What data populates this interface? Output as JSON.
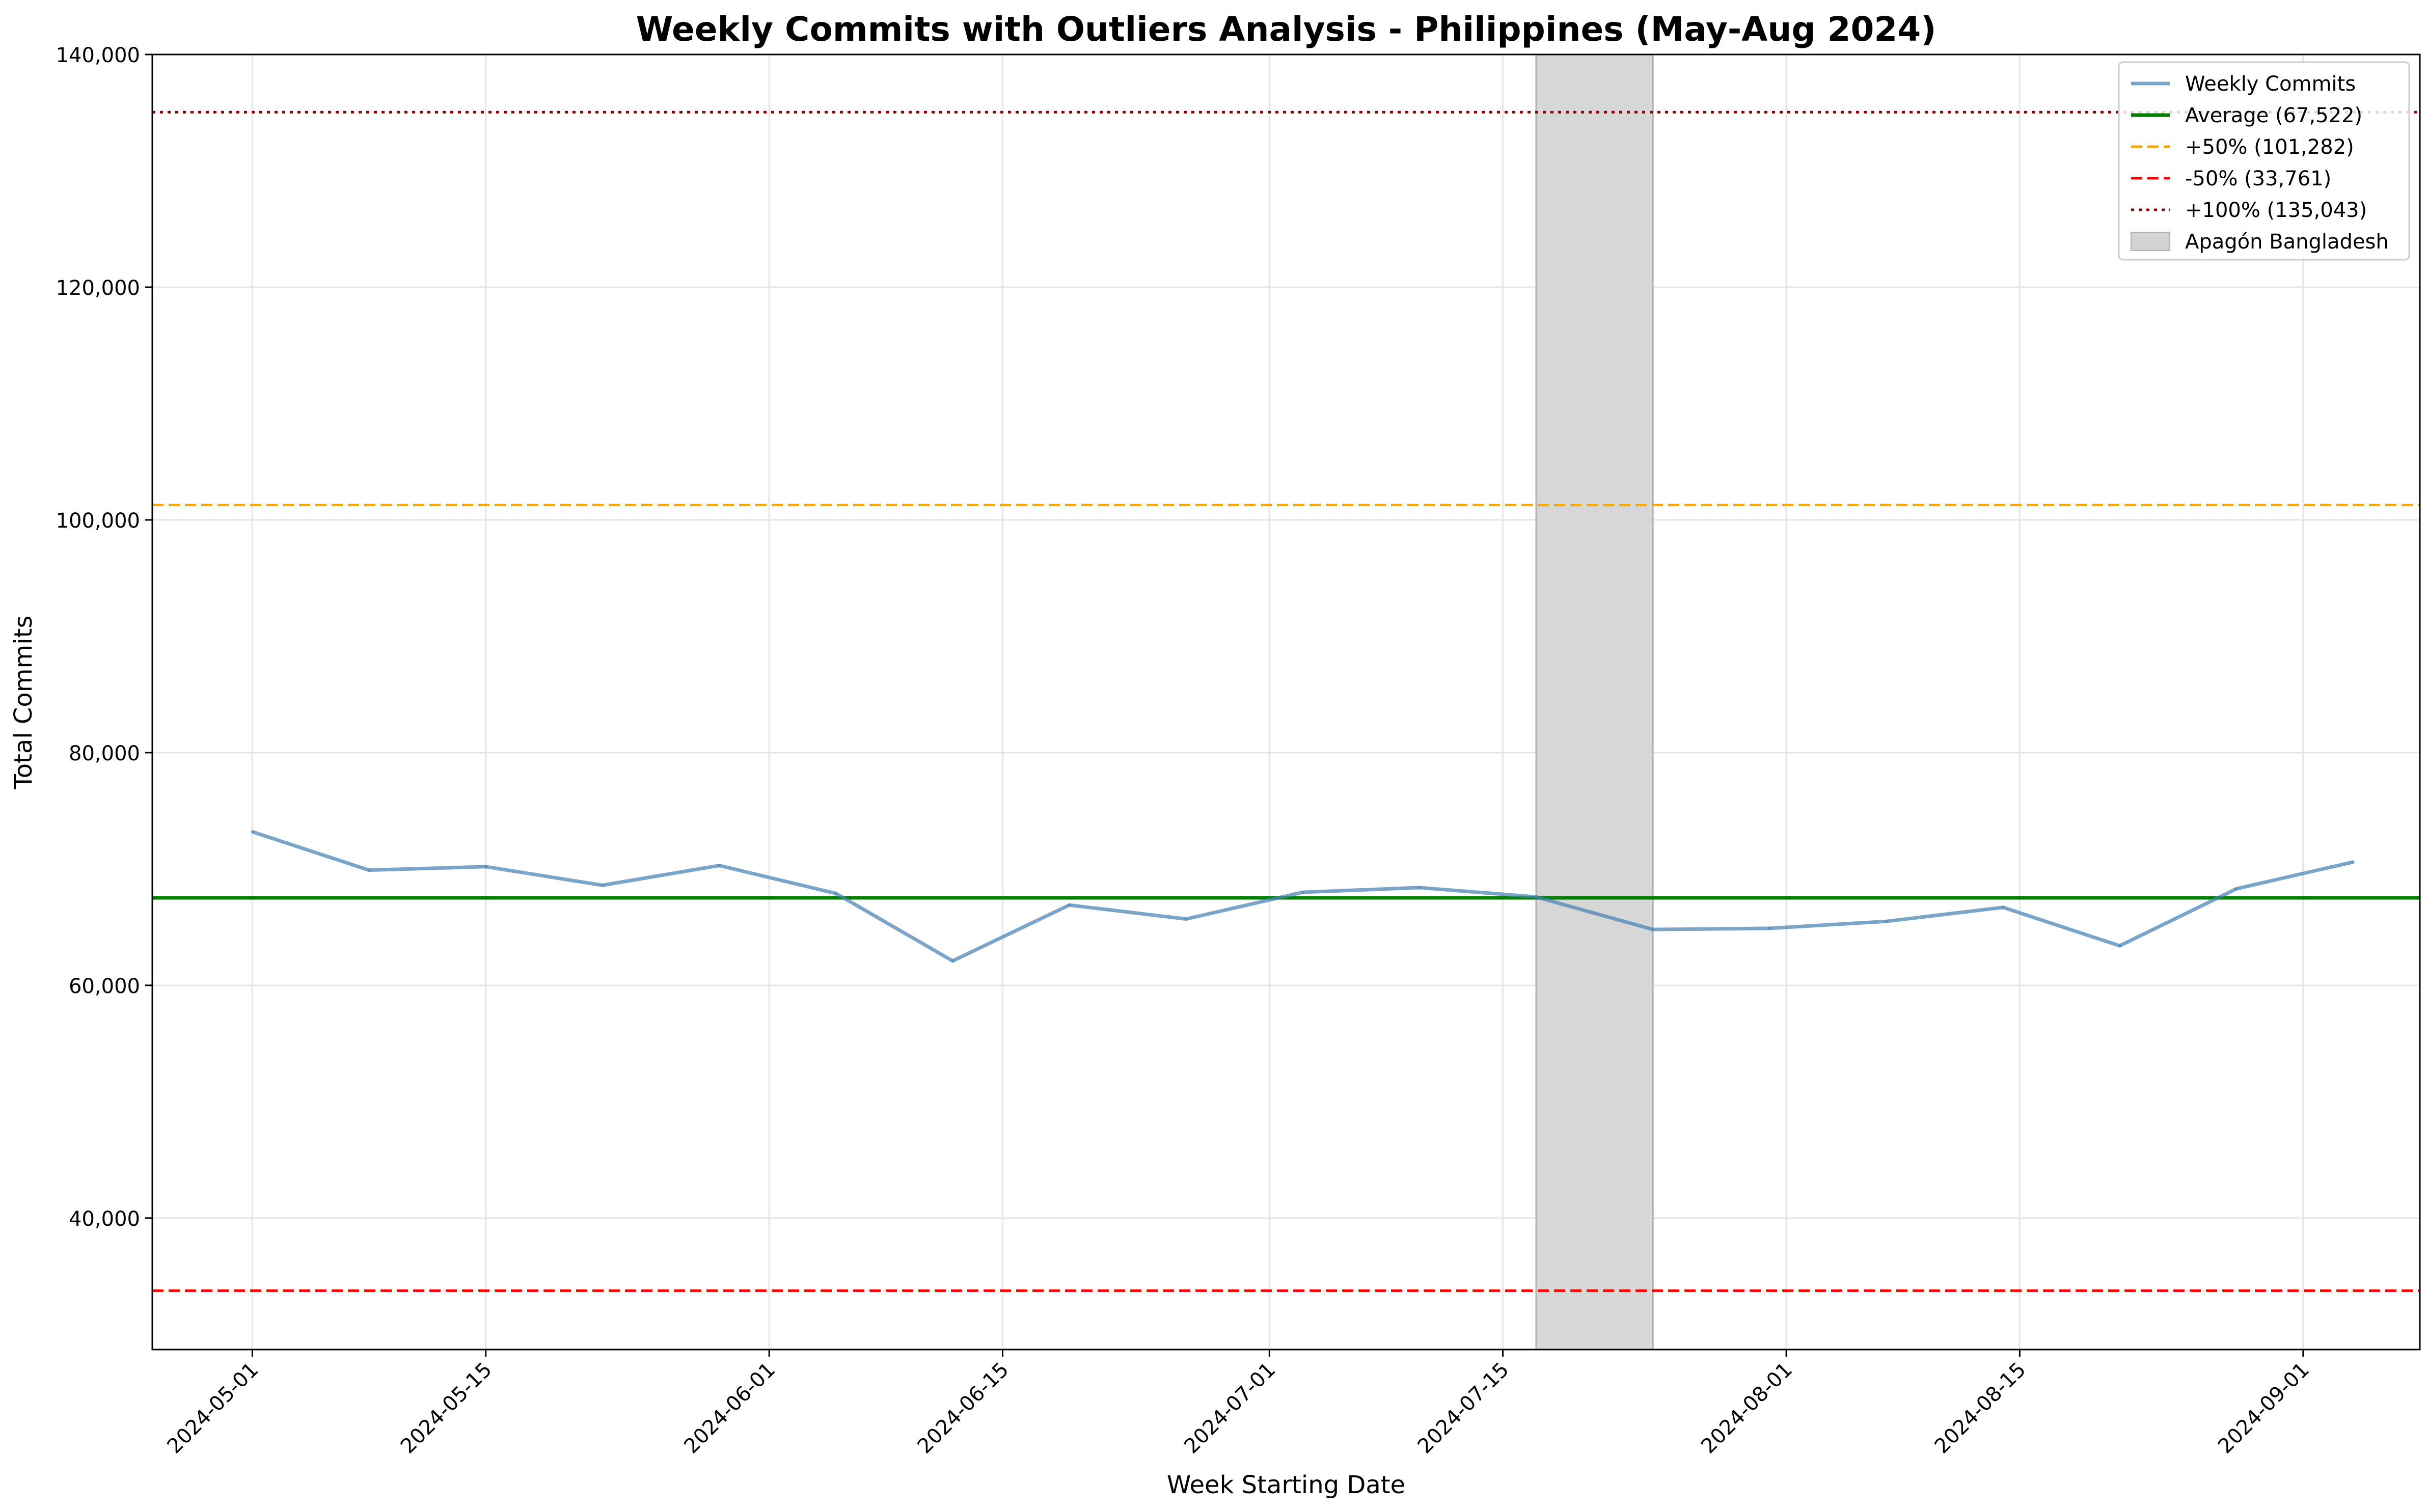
{
  "chart_data": {
    "type": "line",
    "title": "Weekly Commits with Outliers Analysis - Philippines (May-Aug 2024)",
    "xlabel": "Week Starting Date",
    "ylabel": "Total Commits",
    "ylim": [
      28700,
      140000
    ],
    "xlim": [
      "2024-04-25",
      "2024-09-08"
    ],
    "grid": true,
    "legend_placement": "top-right",
    "x_ticks": [
      "2024-05-01",
      "2024-05-15",
      "2024-06-01",
      "2024-06-15",
      "2024-07-01",
      "2024-07-15",
      "2024-08-01",
      "2024-08-15",
      "2024-09-01"
    ],
    "y_ticks": [
      40000,
      60000,
      80000,
      100000,
      120000,
      140000
    ],
    "y_tick_labels": [
      "40,000",
      "60,000",
      "80,000",
      "100,000",
      "120,000",
      "140,000"
    ],
    "series": [
      {
        "name": "Weekly Commits",
        "color": "#4682b4",
        "x": [
          "2024-05-01",
          "2024-05-08",
          "2024-05-15",
          "2024-05-22",
          "2024-05-29",
          "2024-06-05",
          "2024-06-12",
          "2024-06-19",
          "2024-06-26",
          "2024-07-03",
          "2024-07-10",
          "2024-07-17",
          "2024-07-24",
          "2024-07-31",
          "2024-08-07",
          "2024-08-14",
          "2024-08-21",
          "2024-08-28",
          "2024-09-04"
        ],
        "values": [
          73200,
          69900,
          70200,
          68600,
          70300,
          67900,
          62100,
          66900,
          65700,
          68000,
          68400,
          67600,
          64800,
          64900,
          65500,
          66700,
          63400,
          68300,
          70600
        ]
      }
    ],
    "reference_lines": [
      {
        "name": "Average (67,522)",
        "value": 67522,
        "color": "#008000",
        "style": "solid"
      },
      {
        "name": "+50% (101,282)",
        "value": 101282,
        "color": "#ffa500",
        "style": "dashed"
      },
      {
        "name": "-50% (33,761)",
        "value": 33761,
        "color": "#ff0000",
        "style": "dashed"
      },
      {
        "name": "+100% (135,043)",
        "value": 135043,
        "color": "#8b0000",
        "style": "dotted"
      }
    ],
    "shaded_region": {
      "name": "Apagón Bangladesh",
      "start": "2024-07-17",
      "end": "2024-07-24",
      "color": "#d3d3d3"
    }
  }
}
